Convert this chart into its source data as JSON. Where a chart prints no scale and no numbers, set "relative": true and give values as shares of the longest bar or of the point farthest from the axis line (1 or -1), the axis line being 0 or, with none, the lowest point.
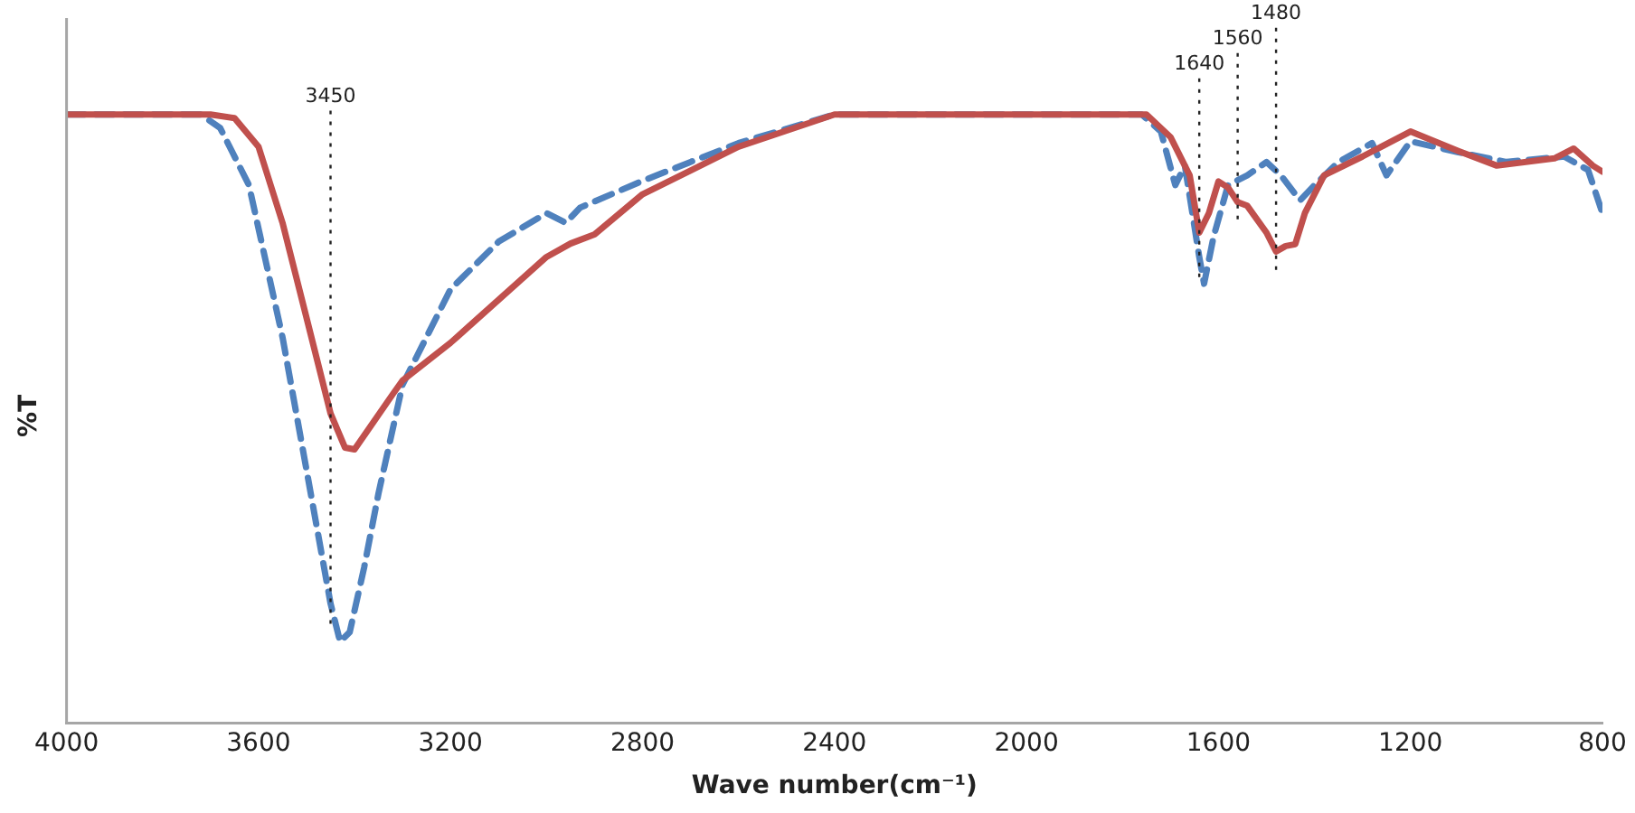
{
  "chart_data": {
    "type": "line",
    "relative": true,
    "xlabel": "Wave number(cm⁻¹)",
    "ylabel": "%T",
    "xlim": [
      4000,
      800
    ],
    "xticks": [
      4000,
      3600,
      3200,
      2800,
      2400,
      2000,
      1600,
      1200,
      800
    ],
    "grid": false,
    "legend": false,
    "marker": "none",
    "series": [
      {
        "color": "#c0504d",
        "line_style": "solid",
        "x": [
          4000,
          3700,
          3650,
          3600,
          3550,
          3500,
          3450,
          3420,
          3400,
          3370,
          3320,
          3300,
          3200,
          3000,
          2950,
          2900,
          2800,
          2600,
          2400,
          1750,
          1700,
          1660,
          1640,
          1620,
          1600,
          1580,
          1560,
          1540,
          1500,
          1480,
          1460,
          1440,
          1420,
          1380,
          1300,
          1200,
          1100,
          1020,
          900,
          860,
          820,
          800
        ],
        "values": [
          1,
          1,
          0.994,
          0.947,
          0.822,
          0.666,
          0.509,
          0.453,
          0.45,
          0.484,
          0.541,
          0.563,
          0.625,
          0.766,
          0.788,
          0.803,
          0.869,
          0.947,
          1,
          1,
          0.963,
          0.9,
          0.806,
          0.838,
          0.89,
          0.88,
          0.856,
          0.85,
          0.806,
          0.775,
          0.784,
          0.787,
          0.838,
          0.9,
          0.931,
          0.972,
          0.94,
          0.916,
          0.928,
          0.944,
          0.916,
          0.906
        ]
      },
      {
        "color": "#4f81bd",
        "line_style": "dashed",
        "x": [
          4000,
          3720,
          3680,
          3620,
          3550,
          3500,
          3450,
          3430,
          3410,
          3380,
          3350,
          3300,
          3200,
          3100,
          3000,
          2960,
          2930,
          2800,
          2600,
          2400,
          1760,
          1720,
          1690,
          1670,
          1640,
          1630,
          1610,
          1580,
          1540,
          1500,
          1470,
          1430,
          1400,
          1350,
          1280,
          1250,
          1200,
          1100,
          1000,
          880,
          830,
          800
        ],
        "values": [
          1,
          1,
          0.978,
          0.884,
          0.634,
          0.416,
          0.197,
          0.134,
          0.15,
          0.256,
          0.378,
          0.556,
          0.713,
          0.791,
          0.838,
          0.822,
          0.847,
          0.891,
          0.953,
          1,
          1,
          0.972,
          0.884,
          0.916,
          0.766,
          0.722,
          0.8,
          0.884,
          0.9,
          0.922,
          0.9,
          0.859,
          0.884,
          0.922,
          0.953,
          0.9,
          0.956,
          0.938,
          0.922,
          0.931,
          0.909,
          0.838
        ]
      }
    ],
    "ref_lines": [
      {
        "axis": "x",
        "value": 3450,
        "label": "3450",
        "color": "#222222",
        "line_style": "dotted"
      },
      {
        "axis": "x",
        "value": 1640,
        "label": "1640",
        "color": "#222222",
        "line_style": "dotted"
      },
      {
        "axis": "x",
        "value": 1560,
        "label": "1560",
        "color": "#222222",
        "line_style": "dotted"
      },
      {
        "axis": "x",
        "value": 1480,
        "label": "1480",
        "color": "#222222",
        "line_style": "dotted"
      }
    ]
  }
}
